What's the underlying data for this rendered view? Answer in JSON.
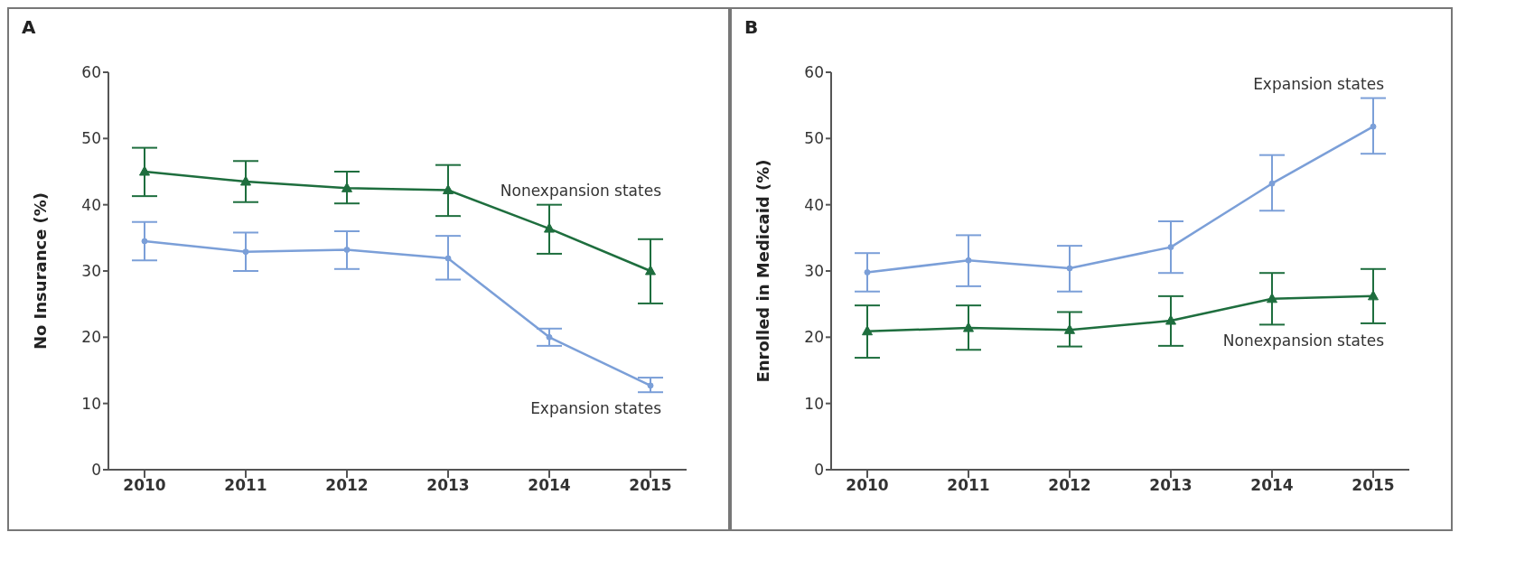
{
  "chart_data": [
    {
      "type": "line",
      "title": "A",
      "ylabel": "No Insurance (%)",
      "categories": [
        "2010",
        "2011",
        "2012",
        "2013",
        "2014",
        "2015"
      ],
      "ylim": [
        0,
        60
      ],
      "yticks": [
        0,
        10,
        20,
        30,
        40,
        50,
        60
      ],
      "grid": false,
      "legend": false,
      "line_style": "solid",
      "series": [
        {
          "name": "Nonexpansion states",
          "color": "#1e6e3e",
          "marker": "triangle",
          "values": [
            45,
            43.5,
            42.5,
            42.2,
            36.4,
            30
          ],
          "errors": [
            [
              41.3,
              48.6
            ],
            [
              40.4,
              46.6
            ],
            [
              40.2,
              45
            ],
            [
              38.3,
              46
            ],
            [
              32.6,
              40
            ],
            [
              25.1,
              34.8
            ]
          ]
        },
        {
          "name": "Expansion states",
          "color": "#7b9fd8",
          "marker": "circle",
          "values": [
            34.5,
            32.9,
            33.2,
            31.9,
            20,
            12.7
          ],
          "errors": [
            [
              31.6,
              37.4
            ],
            [
              30,
              35.8
            ],
            [
              30.3,
              36
            ],
            [
              28.7,
              35.3
            ],
            [
              18.7,
              21.3
            ],
            [
              11.7,
              13.9
            ]
          ]
        }
      ]
    },
    {
      "type": "line",
      "title": "B",
      "ylabel": "Enrolled in Medicaid (%)",
      "categories": [
        "2010",
        "2011",
        "2012",
        "2013",
        "2014",
        "2015"
      ],
      "ylim": [
        0,
        60
      ],
      "yticks": [
        0,
        10,
        20,
        30,
        40,
        50,
        60
      ],
      "grid": false,
      "legend": false,
      "line_style": "solid",
      "series": [
        {
          "name": "Expansion states",
          "color": "#7b9fd8",
          "marker": "circle",
          "values": [
            29.8,
            31.6,
            30.4,
            33.6,
            43.2,
            51.8
          ],
          "errors": [
            [
              26.9,
              32.7
            ],
            [
              27.7,
              35.4
            ],
            [
              26.9,
              33.8
            ],
            [
              29.7,
              37.5
            ],
            [
              39.1,
              47.5
            ],
            [
              47.7,
              56.1
            ]
          ]
        },
        {
          "name": "Nonexpansion states",
          "color": "#1e6e3e",
          "marker": "triangle",
          "values": [
            20.9,
            21.4,
            21.1,
            22.5,
            25.8,
            26.2
          ],
          "errors": [
            [
              16.9,
              24.8
            ],
            [
              18.1,
              24.8
            ],
            [
              18.6,
              23.8
            ],
            [
              18.7,
              26.2
            ],
            [
              21.9,
              29.7
            ],
            [
              22.1,
              30.3
            ]
          ]
        }
      ]
    }
  ]
}
